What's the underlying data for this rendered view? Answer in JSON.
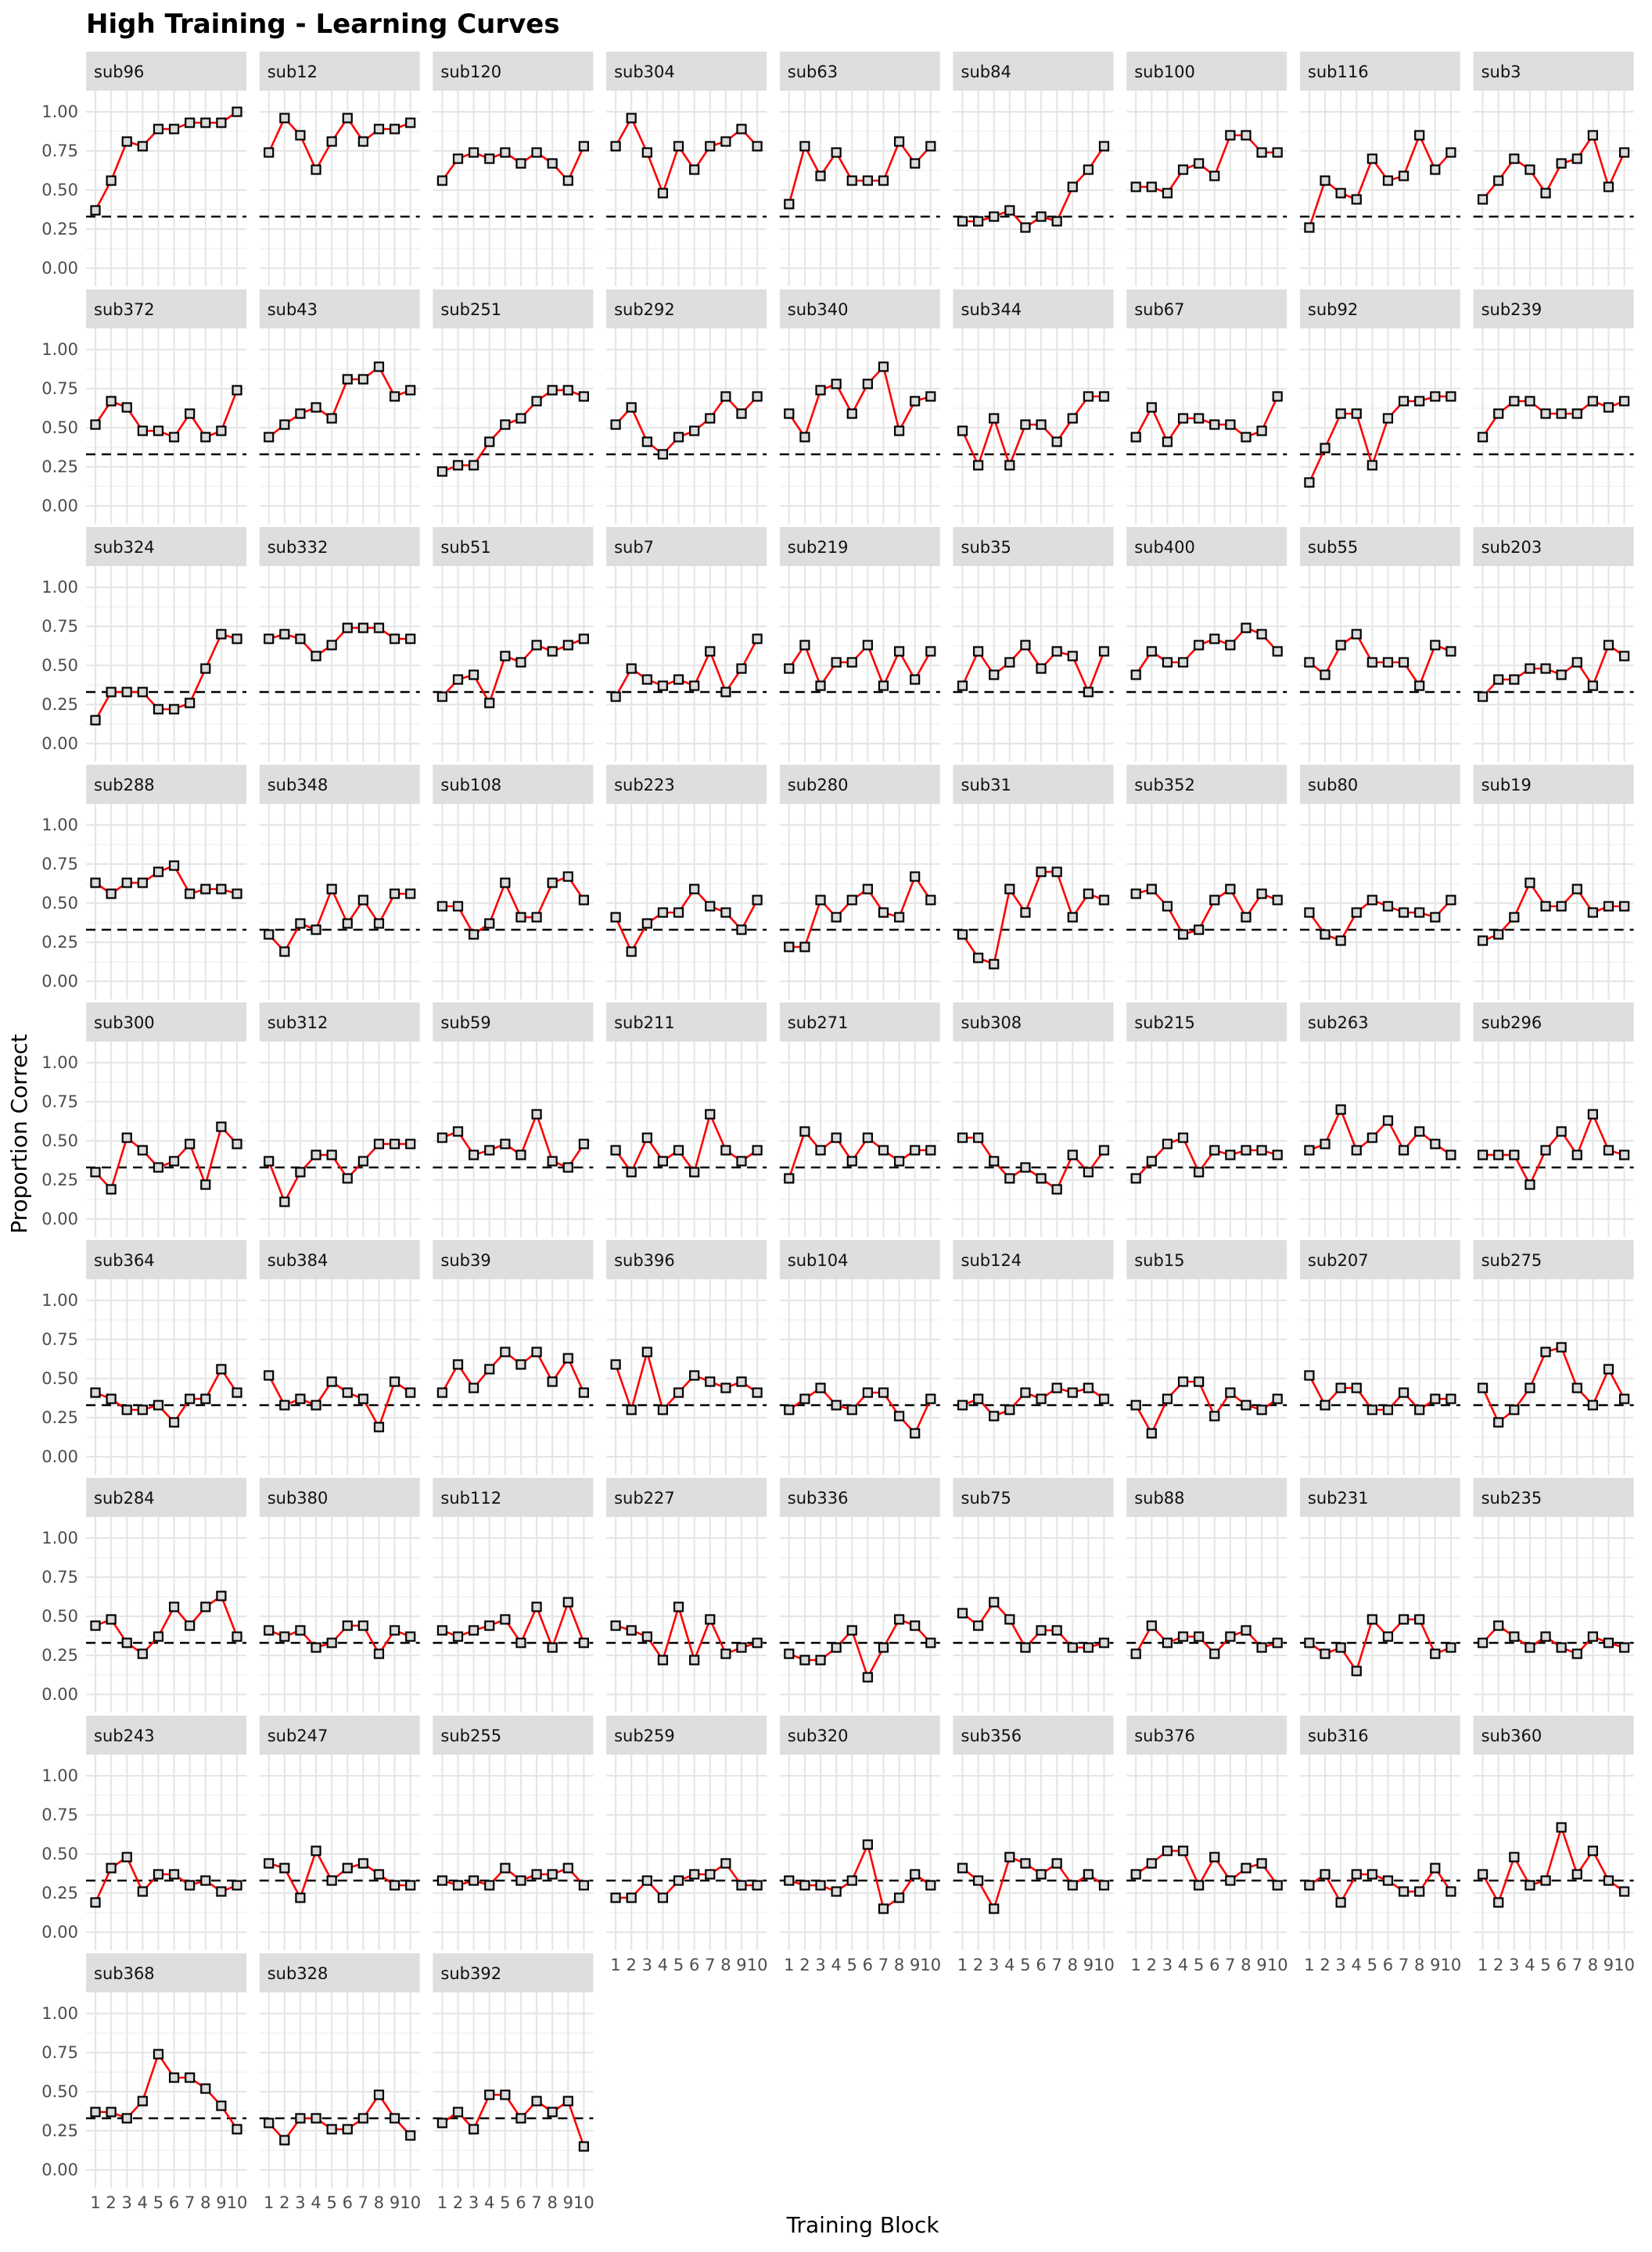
{
  "chart_data": {
    "type": "line",
    "title": "High Training - Learning Curves",
    "xlabel": "Training Block",
    "ylabel": "Proportion Correct",
    "x": [
      1,
      2,
      3,
      4,
      5,
      6,
      7,
      8,
      9,
      10
    ],
    "x_tick_labels": [
      "1",
      "2",
      "3",
      "4",
      "5",
      "6",
      "7",
      "8",
      "9",
      "10"
    ],
    "ylim": [
      0,
      1
    ],
    "y_ticks": [
      0,
      0.25,
      0.5,
      0.75,
      1
    ],
    "y_tick_labels": [
      "0.00",
      "0.25",
      "0.50",
      "0.75",
      "1.00"
    ],
    "chance_line": 0.33,
    "grid": true,
    "line_color": "#ff0000",
    "chance_line_color": "#000000",
    "strip_color": "#d9d9d9",
    "ncols": 9,
    "panels": [
      {
        "name": "sub96",
        "values": [
          0.37,
          0.56,
          0.81,
          0.78,
          0.89,
          0.89,
          0.93,
          0.93,
          0.93,
          1.0
        ]
      },
      {
        "name": "sub12",
        "values": [
          0.74,
          0.96,
          0.85,
          0.63,
          0.81,
          0.96,
          0.81,
          0.89,
          0.89,
          0.93
        ]
      },
      {
        "name": "sub120",
        "values": [
          0.56,
          0.7,
          0.74,
          0.7,
          0.74,
          0.67,
          0.74,
          0.67,
          0.56,
          0.78
        ]
      },
      {
        "name": "sub304",
        "values": [
          0.78,
          0.96,
          0.74,
          0.48,
          0.78,
          0.63,
          0.78,
          0.81,
          0.89,
          0.78
        ]
      },
      {
        "name": "sub63",
        "values": [
          0.41,
          0.78,
          0.59,
          0.74,
          0.56,
          0.56,
          0.56,
          0.81,
          0.67,
          0.78
        ]
      },
      {
        "name": "sub84",
        "values": [
          0.3,
          0.3,
          0.33,
          0.37,
          0.26,
          0.33,
          0.3,
          0.52,
          0.63,
          0.78
        ]
      },
      {
        "name": "sub100",
        "values": [
          0.52,
          0.52,
          0.48,
          0.63,
          0.67,
          0.59,
          0.85,
          0.85,
          0.74,
          0.74
        ]
      },
      {
        "name": "sub116",
        "values": [
          0.26,
          0.56,
          0.48,
          0.44,
          0.7,
          0.56,
          0.59,
          0.85,
          0.63,
          0.74
        ]
      },
      {
        "name": "sub3",
        "values": [
          0.44,
          0.56,
          0.7,
          0.63,
          0.48,
          0.67,
          0.7,
          0.85,
          0.52,
          0.74
        ]
      },
      {
        "name": "sub372",
        "values": [
          0.52,
          0.67,
          0.63,
          0.48,
          0.48,
          0.44,
          0.59,
          0.44,
          0.48,
          0.74
        ]
      },
      {
        "name": "sub43",
        "values": [
          0.44,
          0.52,
          0.59,
          0.63,
          0.56,
          0.81,
          0.81,
          0.89,
          0.7,
          0.74
        ]
      },
      {
        "name": "sub251",
        "values": [
          0.22,
          0.26,
          0.26,
          0.41,
          0.52,
          0.56,
          0.67,
          0.74,
          0.74,
          0.7
        ]
      },
      {
        "name": "sub292",
        "values": [
          0.52,
          0.63,
          0.41,
          0.33,
          0.44,
          0.48,
          0.56,
          0.7,
          0.59,
          0.7
        ]
      },
      {
        "name": "sub340",
        "values": [
          0.59,
          0.44,
          0.74,
          0.78,
          0.59,
          0.78,
          0.89,
          0.48,
          0.67,
          0.7
        ]
      },
      {
        "name": "sub344",
        "values": [
          0.48,
          0.26,
          0.56,
          0.26,
          0.52,
          0.52,
          0.41,
          0.56,
          0.7,
          0.7
        ]
      },
      {
        "name": "sub67",
        "values": [
          0.44,
          0.63,
          0.41,
          0.56,
          0.56,
          0.52,
          0.52,
          0.44,
          0.48,
          0.7
        ]
      },
      {
        "name": "sub92",
        "values": [
          0.15,
          0.37,
          0.59,
          0.59,
          0.26,
          0.56,
          0.67,
          0.67,
          0.7,
          0.7
        ]
      },
      {
        "name": "sub239",
        "values": [
          0.44,
          0.59,
          0.67,
          0.67,
          0.59,
          0.59,
          0.59,
          0.67,
          0.63,
          0.67
        ]
      },
      {
        "name": "sub324",
        "values": [
          0.15,
          0.33,
          0.33,
          0.33,
          0.22,
          0.22,
          0.26,
          0.48,
          0.7,
          0.67
        ]
      },
      {
        "name": "sub332",
        "values": [
          0.67,
          0.7,
          0.67,
          0.56,
          0.63,
          0.74,
          0.74,
          0.74,
          0.67,
          0.67
        ]
      },
      {
        "name": "sub51",
        "values": [
          0.3,
          0.41,
          0.44,
          0.26,
          0.56,
          0.52,
          0.63,
          0.59,
          0.63,
          0.67
        ]
      },
      {
        "name": "sub7",
        "values": [
          0.3,
          0.48,
          0.41,
          0.37,
          0.41,
          0.37,
          0.59,
          0.33,
          0.48,
          0.67
        ]
      },
      {
        "name": "sub219",
        "values": [
          0.48,
          0.63,
          0.37,
          0.52,
          0.52,
          0.63,
          0.37,
          0.59,
          0.41,
          0.59
        ]
      },
      {
        "name": "sub35",
        "values": [
          0.37,
          0.59,
          0.44,
          0.52,
          0.63,
          0.48,
          0.59,
          0.56,
          0.33,
          0.59
        ]
      },
      {
        "name": "sub400",
        "values": [
          0.44,
          0.59,
          0.52,
          0.52,
          0.63,
          0.67,
          0.63,
          0.74,
          0.7,
          0.59
        ]
      },
      {
        "name": "sub55",
        "values": [
          0.52,
          0.44,
          0.63,
          0.7,
          0.52,
          0.52,
          0.52,
          0.37,
          0.63,
          0.59
        ]
      },
      {
        "name": "sub203",
        "values": [
          0.3,
          0.41,
          0.41,
          0.48,
          0.48,
          0.44,
          0.52,
          0.37,
          0.63,
          0.56
        ]
      },
      {
        "name": "sub288",
        "values": [
          0.63,
          0.56,
          0.63,
          0.63,
          0.7,
          0.74,
          0.56,
          0.59,
          0.59,
          0.56
        ]
      },
      {
        "name": "sub348",
        "values": [
          0.3,
          0.19,
          0.37,
          0.33,
          0.59,
          0.37,
          0.52,
          0.37,
          0.56,
          0.56
        ]
      },
      {
        "name": "sub108",
        "values": [
          0.48,
          0.48,
          0.3,
          0.37,
          0.63,
          0.41,
          0.41,
          0.63,
          0.67,
          0.52
        ]
      },
      {
        "name": "sub223",
        "values": [
          0.41,
          0.19,
          0.37,
          0.44,
          0.44,
          0.59,
          0.48,
          0.44,
          0.33,
          0.52
        ]
      },
      {
        "name": "sub280",
        "values": [
          0.22,
          0.22,
          0.52,
          0.41,
          0.52,
          0.59,
          0.44,
          0.41,
          0.67,
          0.52
        ]
      },
      {
        "name": "sub31",
        "values": [
          0.3,
          0.15,
          0.11,
          0.59,
          0.44,
          0.7,
          0.7,
          0.41,
          0.56,
          0.52
        ]
      },
      {
        "name": "sub352",
        "values": [
          0.56,
          0.59,
          0.48,
          0.3,
          0.33,
          0.52,
          0.59,
          0.41,
          0.56,
          0.52
        ]
      },
      {
        "name": "sub80",
        "values": [
          0.44,
          0.3,
          0.26,
          0.44,
          0.52,
          0.48,
          0.44,
          0.44,
          0.41,
          0.52
        ]
      },
      {
        "name": "sub19",
        "values": [
          0.26,
          0.3,
          0.41,
          0.63,
          0.48,
          0.48,
          0.59,
          0.44,
          0.48,
          0.48
        ]
      },
      {
        "name": "sub300",
        "values": [
          0.3,
          0.19,
          0.52,
          0.44,
          0.33,
          0.37,
          0.48,
          0.22,
          0.59,
          0.48
        ]
      },
      {
        "name": "sub312",
        "values": [
          0.37,
          0.11,
          0.3,
          0.41,
          0.41,
          0.26,
          0.37,
          0.48,
          0.48,
          0.48
        ]
      },
      {
        "name": "sub59",
        "values": [
          0.52,
          0.56,
          0.41,
          0.44,
          0.48,
          0.41,
          0.67,
          0.37,
          0.33,
          0.48
        ]
      },
      {
        "name": "sub211",
        "values": [
          0.44,
          0.3,
          0.52,
          0.37,
          0.44,
          0.3,
          0.67,
          0.44,
          0.37,
          0.44
        ]
      },
      {
        "name": "sub271",
        "values": [
          0.26,
          0.56,
          0.44,
          0.52,
          0.37,
          0.52,
          0.44,
          0.37,
          0.44,
          0.44
        ]
      },
      {
        "name": "sub308",
        "values": [
          0.52,
          0.52,
          0.37,
          0.26,
          0.33,
          0.26,
          0.19,
          0.41,
          0.3,
          0.44
        ]
      },
      {
        "name": "sub215",
        "values": [
          0.26,
          0.37,
          0.48,
          0.52,
          0.3,
          0.44,
          0.41,
          0.44,
          0.44,
          0.41
        ]
      },
      {
        "name": "sub263",
        "values": [
          0.44,
          0.48,
          0.7,
          0.44,
          0.52,
          0.63,
          0.44,
          0.56,
          0.48,
          0.41
        ]
      },
      {
        "name": "sub296",
        "values": [
          0.41,
          0.41,
          0.41,
          0.22,
          0.44,
          0.56,
          0.41,
          0.67,
          0.44,
          0.41
        ]
      },
      {
        "name": "sub364",
        "values": [
          0.41,
          0.37,
          0.3,
          0.3,
          0.33,
          0.22,
          0.37,
          0.37,
          0.56,
          0.41
        ]
      },
      {
        "name": "sub384",
        "values": [
          0.52,
          0.33,
          0.37,
          0.33,
          0.48,
          0.41,
          0.37,
          0.19,
          0.48,
          0.41
        ]
      },
      {
        "name": "sub39",
        "values": [
          0.41,
          0.59,
          0.44,
          0.56,
          0.67,
          0.59,
          0.67,
          0.48,
          0.63,
          0.41
        ]
      },
      {
        "name": "sub396",
        "values": [
          0.59,
          0.3,
          0.67,
          0.3,
          0.41,
          0.52,
          0.48,
          0.44,
          0.48,
          0.41
        ]
      },
      {
        "name": "sub104",
        "values": [
          0.3,
          0.37,
          0.44,
          0.33,
          0.3,
          0.41,
          0.41,
          0.26,
          0.15,
          0.37
        ]
      },
      {
        "name": "sub124",
        "values": [
          0.33,
          0.37,
          0.26,
          0.3,
          0.41,
          0.37,
          0.44,
          0.41,
          0.44,
          0.37
        ]
      },
      {
        "name": "sub15",
        "values": [
          0.33,
          0.15,
          0.37,
          0.48,
          0.48,
          0.26,
          0.41,
          0.33,
          0.3,
          0.37
        ]
      },
      {
        "name": "sub207",
        "values": [
          0.52,
          0.33,
          0.44,
          0.44,
          0.3,
          0.3,
          0.41,
          0.3,
          0.37,
          0.37
        ]
      },
      {
        "name": "sub275",
        "values": [
          0.44,
          0.22,
          0.3,
          0.44,
          0.67,
          0.7,
          0.44,
          0.33,
          0.56,
          0.37
        ]
      },
      {
        "name": "sub284",
        "values": [
          0.44,
          0.48,
          0.33,
          0.26,
          0.37,
          0.56,
          0.44,
          0.56,
          0.63,
          0.37
        ]
      },
      {
        "name": "sub380",
        "values": [
          0.41,
          0.37,
          0.41,
          0.3,
          0.33,
          0.44,
          0.44,
          0.26,
          0.41,
          0.37
        ]
      },
      {
        "name": "sub112",
        "values": [
          0.41,
          0.37,
          0.41,
          0.44,
          0.48,
          0.33,
          0.56,
          0.3,
          0.59,
          0.33
        ]
      },
      {
        "name": "sub227",
        "values": [
          0.44,
          0.41,
          0.37,
          0.22,
          0.56,
          0.22,
          0.48,
          0.26,
          0.3,
          0.33
        ]
      },
      {
        "name": "sub336",
        "values": [
          0.26,
          0.22,
          0.22,
          0.3,
          0.41,
          0.11,
          0.3,
          0.48,
          0.44,
          0.33
        ]
      },
      {
        "name": "sub75",
        "values": [
          0.52,
          0.44,
          0.59,
          0.48,
          0.3,
          0.41,
          0.41,
          0.3,
          0.3,
          0.33
        ]
      },
      {
        "name": "sub88",
        "values": [
          0.26,
          0.44,
          0.33,
          0.37,
          0.37,
          0.26,
          0.37,
          0.41,
          0.3,
          0.33
        ]
      },
      {
        "name": "sub231",
        "values": [
          0.33,
          0.26,
          0.3,
          0.15,
          0.48,
          0.37,
          0.48,
          0.48,
          0.26,
          0.3
        ]
      },
      {
        "name": "sub235",
        "values": [
          0.33,
          0.44,
          0.37,
          0.3,
          0.37,
          0.3,
          0.26,
          0.37,
          0.33,
          0.3
        ]
      },
      {
        "name": "sub243",
        "values": [
          0.19,
          0.41,
          0.48,
          0.26,
          0.37,
          0.37,
          0.3,
          0.33,
          0.26,
          0.3
        ]
      },
      {
        "name": "sub247",
        "values": [
          0.44,
          0.41,
          0.22,
          0.52,
          0.33,
          0.41,
          0.44,
          0.37,
          0.3,
          0.3
        ]
      },
      {
        "name": "sub255",
        "values": [
          0.33,
          0.3,
          0.33,
          0.3,
          0.41,
          0.33,
          0.37,
          0.37,
          0.41,
          0.3
        ]
      },
      {
        "name": "sub259",
        "values": [
          0.22,
          0.22,
          0.33,
          0.22,
          0.33,
          0.37,
          0.37,
          0.44,
          0.3,
          0.3
        ]
      },
      {
        "name": "sub320",
        "values": [
          0.33,
          0.3,
          0.3,
          0.26,
          0.33,
          0.56,
          0.15,
          0.22,
          0.37,
          0.3
        ]
      },
      {
        "name": "sub356",
        "values": [
          0.41,
          0.33,
          0.15,
          0.48,
          0.44,
          0.37,
          0.44,
          0.3,
          0.37,
          0.3
        ]
      },
      {
        "name": "sub376",
        "values": [
          0.37,
          0.44,
          0.52,
          0.52,
          0.3,
          0.48,
          0.33,
          0.41,
          0.44,
          0.3
        ]
      },
      {
        "name": "sub316",
        "values": [
          0.3,
          0.37,
          0.19,
          0.37,
          0.37,
          0.33,
          0.26,
          0.26,
          0.41,
          0.26
        ]
      },
      {
        "name": "sub360",
        "values": [
          0.37,
          0.19,
          0.48,
          0.3,
          0.33,
          0.67,
          0.37,
          0.52,
          0.33,
          0.26
        ]
      },
      {
        "name": "sub368",
        "values": [
          0.37,
          0.37,
          0.33,
          0.44,
          0.74,
          0.59,
          0.59,
          0.52,
          0.41,
          0.26
        ]
      },
      {
        "name": "sub328",
        "values": [
          0.3,
          0.19,
          0.33,
          0.33,
          0.26,
          0.26,
          0.33,
          0.48,
          0.33,
          0.22
        ]
      },
      {
        "name": "sub392",
        "values": [
          0.3,
          0.37,
          0.26,
          0.48,
          0.48,
          0.33,
          0.44,
          0.37,
          0.44,
          0.15
        ]
      }
    ]
  }
}
